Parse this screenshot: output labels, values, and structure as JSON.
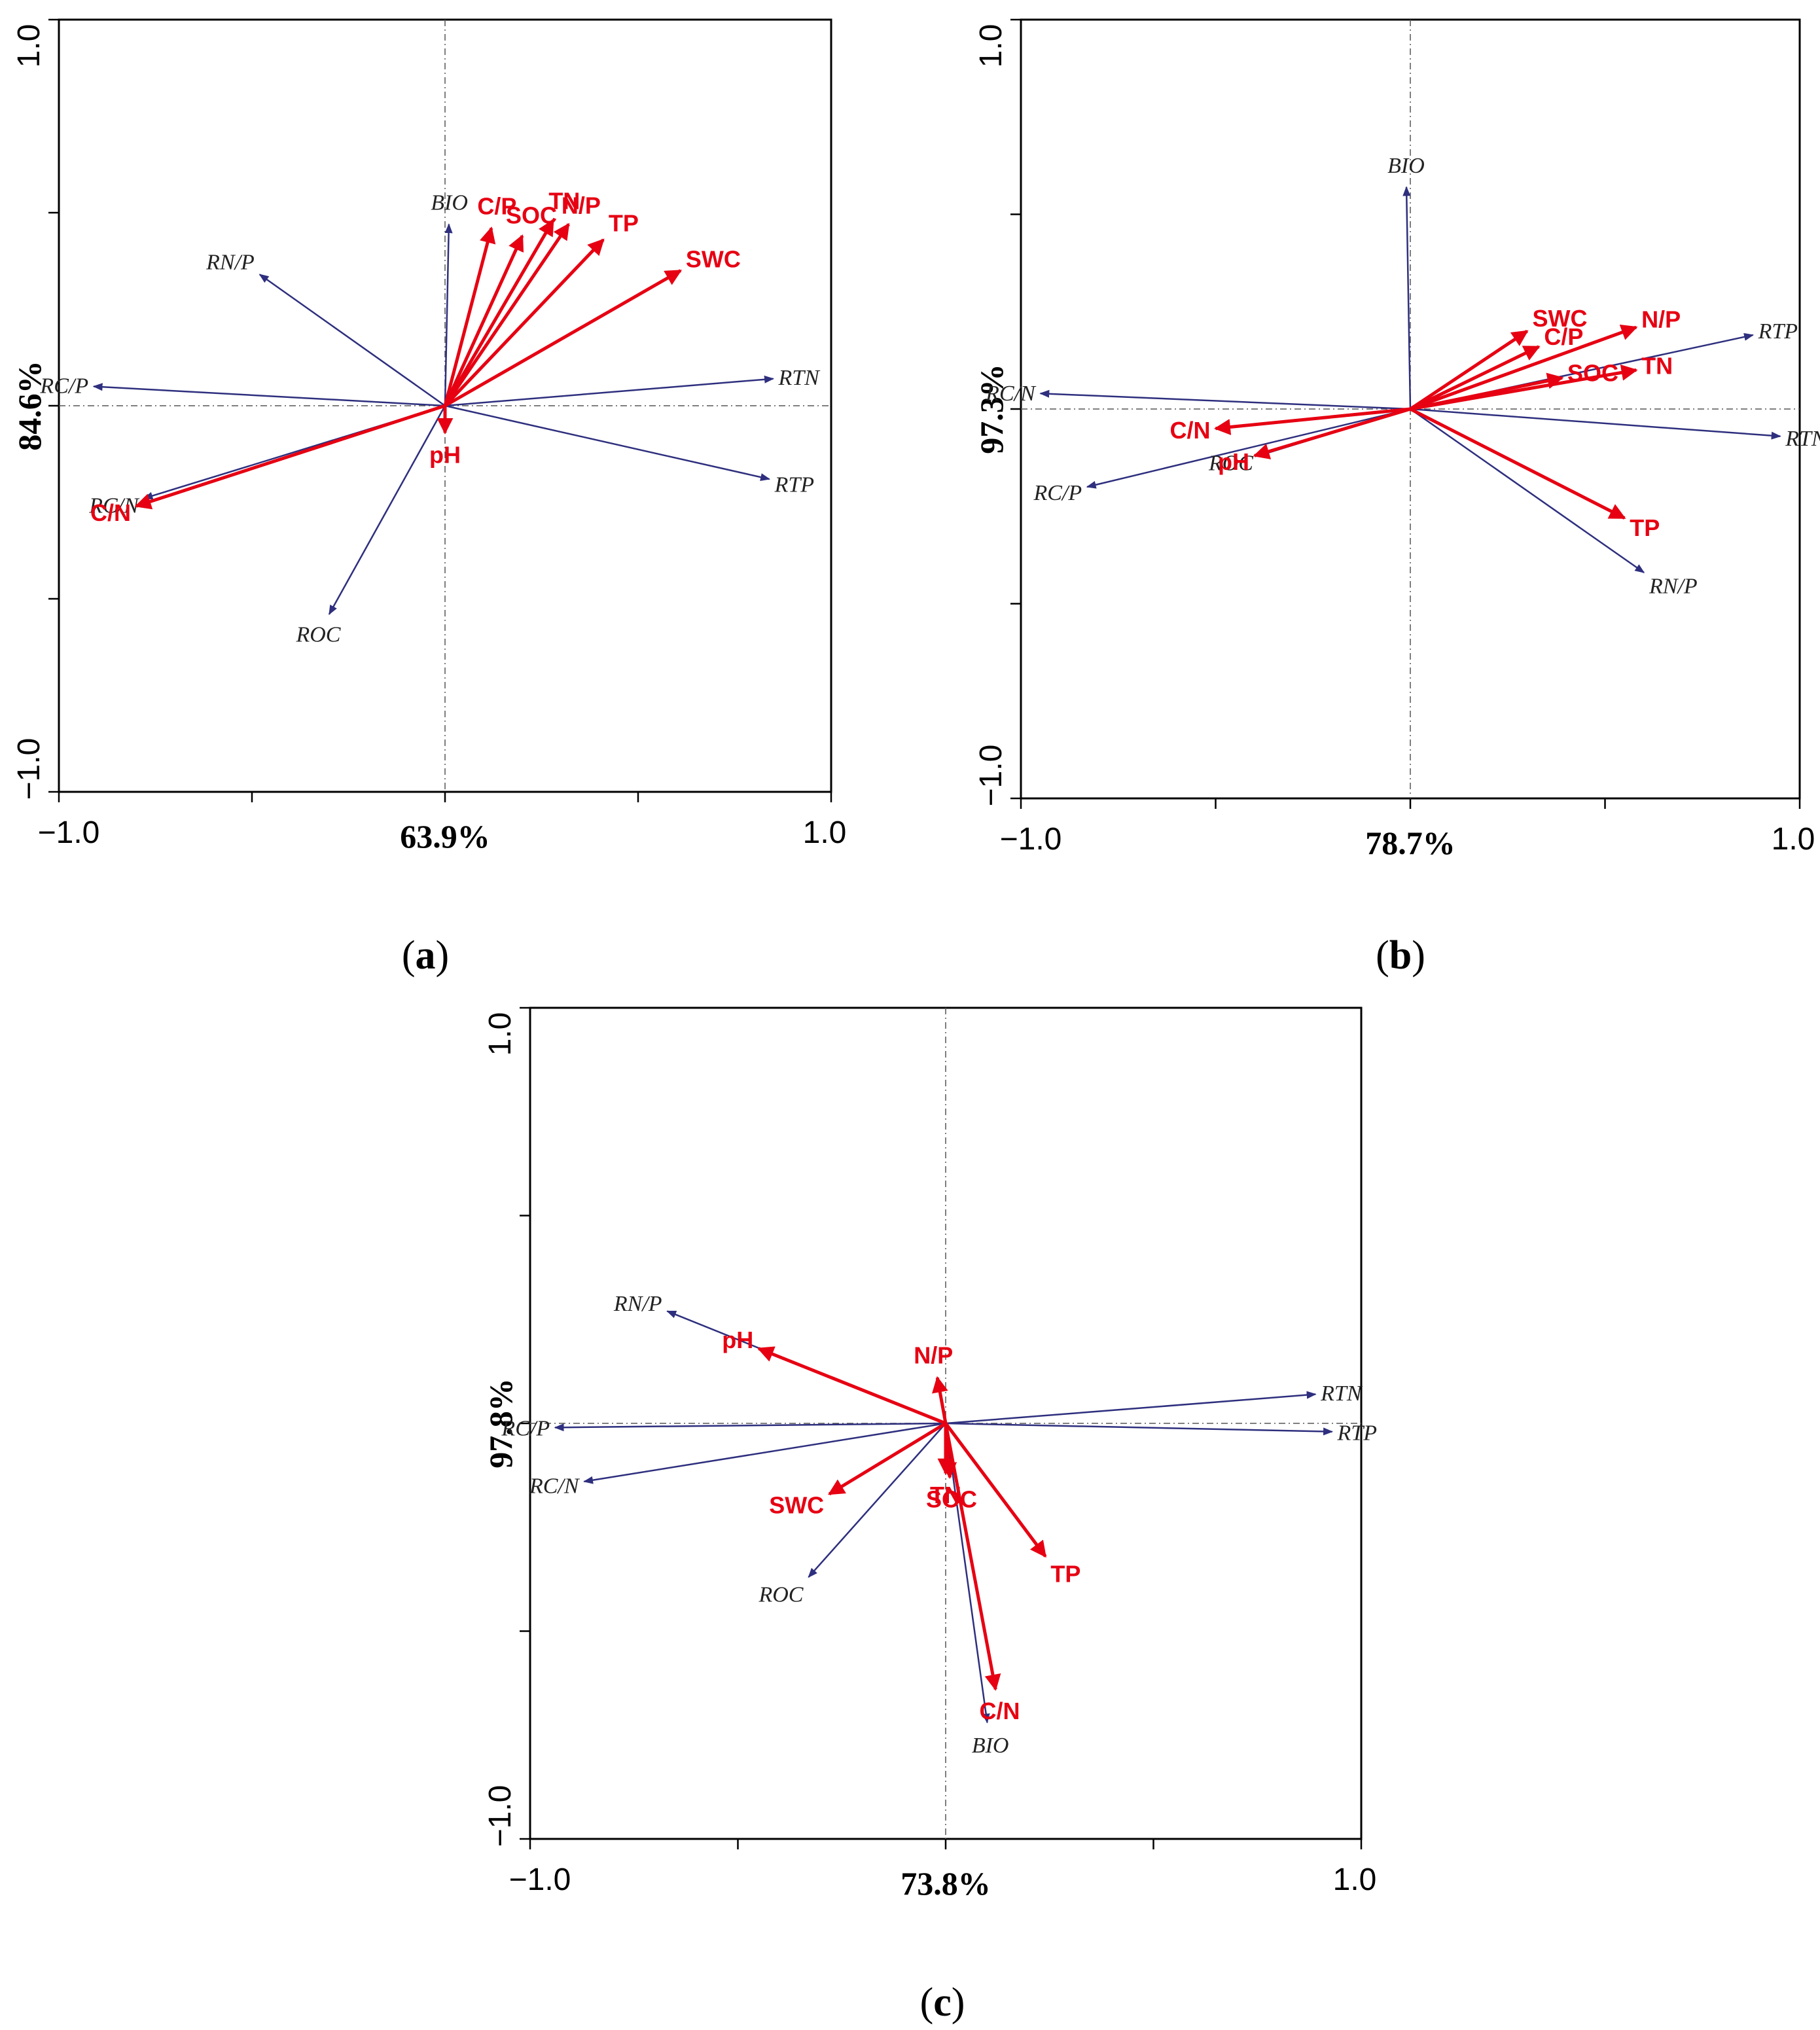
{
  "chart_data": [
    {
      "panel": "a",
      "type": "scatter",
      "subtype": "rda-biplot",
      "xlabel": "63.9%",
      "ylabel": "84.6%",
      "xlim": [
        -1.0,
        1.0
      ],
      "ylim": [
        -1.0,
        1.0
      ],
      "tick_labels": {
        "xmin": "−1.0",
        "xmax": "1.0",
        "ymin": "−1.0",
        "ymax": "1.0"
      },
      "caption": {
        "open": "(",
        "letter": "a",
        "close": ")"
      },
      "response_vectors": [
        {
          "name": "BIO",
          "x": 0.01,
          "y": 0.47
        },
        {
          "name": "RN/P",
          "x": -0.48,
          "y": 0.34
        },
        {
          "name": "RC/P",
          "x": -0.91,
          "y": 0.05
        },
        {
          "name": "RTN",
          "x": 0.85,
          "y": 0.07
        },
        {
          "name": "RTP",
          "x": 0.84,
          "y": -0.19
        },
        {
          "name": "RC/N",
          "x": -0.78,
          "y": -0.24
        },
        {
          "name": "ROC",
          "x": -0.3,
          "y": -0.54
        }
      ],
      "explanatory_vectors": [
        {
          "name": "C/P",
          "x": 0.12,
          "y": 0.46
        },
        {
          "name": "TN",
          "x": 0.28,
          "y": 0.48
        },
        {
          "name": "SOC",
          "x": 0.2,
          "y": 0.44
        },
        {
          "name": "N/P",
          "x": 0.32,
          "y": 0.47
        },
        {
          "name": "TP",
          "x": 0.41,
          "y": 0.43
        },
        {
          "name": "SWC",
          "x": 0.61,
          "y": 0.35
        },
        {
          "name": "pH",
          "x": 0.0,
          "y": -0.07
        },
        {
          "name": "C/N",
          "x": -0.8,
          "y": -0.26
        }
      ]
    },
    {
      "panel": "b",
      "type": "scatter",
      "subtype": "rda-biplot",
      "xlabel": "78.7%",
      "ylabel": "97.3%",
      "xlim": [
        -1.0,
        1.0
      ],
      "ylim": [
        -1.0,
        1.0
      ],
      "tick_labels": {
        "xmin": "−1.0",
        "xmax": "1.0",
        "ymin": "−1.0",
        "ymax": "1.0"
      },
      "caption": {
        "open": "(",
        "letter": "b",
        "close": ")"
      },
      "response_vectors": [
        {
          "name": "BIO",
          "x": -0.01,
          "y": 0.57
        },
        {
          "name": "RC/N",
          "x": -0.95,
          "y": 0.04
        },
        {
          "name": "RTP",
          "x": 0.88,
          "y": 0.19
        },
        {
          "name": "RTN",
          "x": 0.95,
          "y": -0.07
        },
        {
          "name": "RC/P",
          "x": -0.83,
          "y": -0.2
        },
        {
          "name": "ROC",
          "x": -0.39,
          "y": -0.12
        },
        {
          "name": "RN/P",
          "x": 0.6,
          "y": -0.42
        }
      ],
      "explanatory_vectors": [
        {
          "name": "SWC",
          "x": 0.3,
          "y": 0.2
        },
        {
          "name": "C/P",
          "x": 0.33,
          "y": 0.16
        },
        {
          "name": "N/P",
          "x": 0.58,
          "y": 0.21
        },
        {
          "name": "SOC",
          "x": 0.39,
          "y": 0.08
        },
        {
          "name": "TN",
          "x": 0.58,
          "y": 0.1
        },
        {
          "name": "C/N",
          "x": -0.5,
          "y": -0.05
        },
        {
          "name": "pH",
          "x": -0.4,
          "y": -0.12
        },
        {
          "name": "TP",
          "x": 0.55,
          "y": -0.28
        }
      ]
    },
    {
      "panel": "c",
      "type": "scatter",
      "subtype": "rda-biplot",
      "xlabel": "73.8%",
      "ylabel": "97.8%",
      "xlim": [
        -1.0,
        1.0
      ],
      "ylim": [
        -1.0,
        1.0
      ],
      "tick_labels": {
        "xmin": "−1.0",
        "xmax": "1.0",
        "ymin": "−1.0",
        "ymax": "1.0"
      },
      "caption": {
        "open": "(",
        "letter": "c",
        "close": ")"
      },
      "response_vectors": [
        {
          "name": "RN/P",
          "x": -0.67,
          "y": 0.27
        },
        {
          "name": "RC/P",
          "x": -0.94,
          "y": -0.01
        },
        {
          "name": "RC/N",
          "x": -0.87,
          "y": -0.14
        },
        {
          "name": "RTN",
          "x": 0.89,
          "y": 0.07
        },
        {
          "name": "RTP",
          "x": 0.93,
          "y": -0.02
        },
        {
          "name": "ROC",
          "x": -0.33,
          "y": -0.37
        },
        {
          "name": "BIO",
          "x": 0.1,
          "y": -0.72
        }
      ],
      "explanatory_vectors": [
        {
          "name": "pH",
          "x": -0.45,
          "y": 0.18
        },
        {
          "name": "N/P",
          "x": -0.02,
          "y": 0.11
        },
        {
          "name": "TN",
          "x": 0.0,
          "y": -0.12
        },
        {
          "name": "SOC",
          "x": 0.01,
          "y": -0.13
        },
        {
          "name": "SWC",
          "x": -0.28,
          "y": -0.17
        },
        {
          "name": "TP",
          "x": 0.24,
          "y": -0.32
        },
        {
          "name": "C/N",
          "x": 0.12,
          "y": -0.64
        }
      ]
    }
  ],
  "colors": {
    "response": "#2e2f7e",
    "explanatory": "#e60012",
    "axis": "#000000"
  }
}
